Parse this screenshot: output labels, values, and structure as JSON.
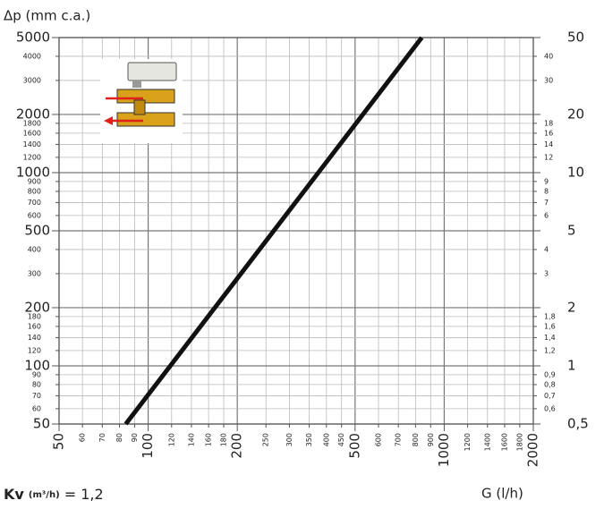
{
  "chart_data": {
    "type": "line",
    "title": "Δp (mm c.a.)",
    "x_label": "G (l/h)",
    "kv_label": "Kv",
    "kv_unit": "(m³/h)",
    "kv_value": "= 1,2",
    "xscale": "log",
    "yscale": "log",
    "grid": true,
    "xlim": [
      50,
      2000
    ],
    "ylim": [
      50,
      5000
    ],
    "y2lim": [
      0.5,
      50
    ],
    "xticks": [
      50,
      100,
      200,
      500,
      1000,
      2000
    ],
    "xticks_minor": [
      60,
      70,
      80,
      90,
      120,
      140,
      160,
      180,
      250,
      300,
      350,
      400,
      450,
      600,
      700,
      800,
      900,
      1200,
      1400,
      1600,
      1800
    ],
    "yticks": [
      50,
      100,
      200,
      500,
      1000,
      2000,
      5000
    ],
    "yticks_minor": [
      60,
      70,
      80,
      90,
      120,
      140,
      160,
      180,
      300,
      400,
      600,
      700,
      800,
      900,
      1200,
      1400,
      1600,
      1800,
      3000,
      4000
    ],
    "y2ticks": [
      {
        "value": 0.5,
        "label": "0,5"
      },
      1,
      2,
      5,
      10,
      20,
      50
    ],
    "y2ticks_minor": [
      {
        "value": 0.6,
        "label": "0,6"
      },
      {
        "value": 0.7,
        "label": "0,7"
      },
      {
        "value": 0.8,
        "label": "0,8"
      },
      {
        "value": 0.9,
        "label": "0,9"
      },
      {
        "value": 1.2,
        "label": "1,2"
      },
      {
        "value": 1.4,
        "label": "1,4"
      },
      {
        "value": 1.6,
        "label": "1,6"
      },
      {
        "value": 1.8,
        "label": "1,8"
      },
      3,
      4,
      6,
      7,
      8,
      9,
      12,
      14,
      16,
      18,
      30,
      40
    ],
    "x": [
      84,
      840
    ],
    "series": [
      {
        "color": "#111111",
        "values": [
          50,
          5000
        ]
      }
    ]
  }
}
